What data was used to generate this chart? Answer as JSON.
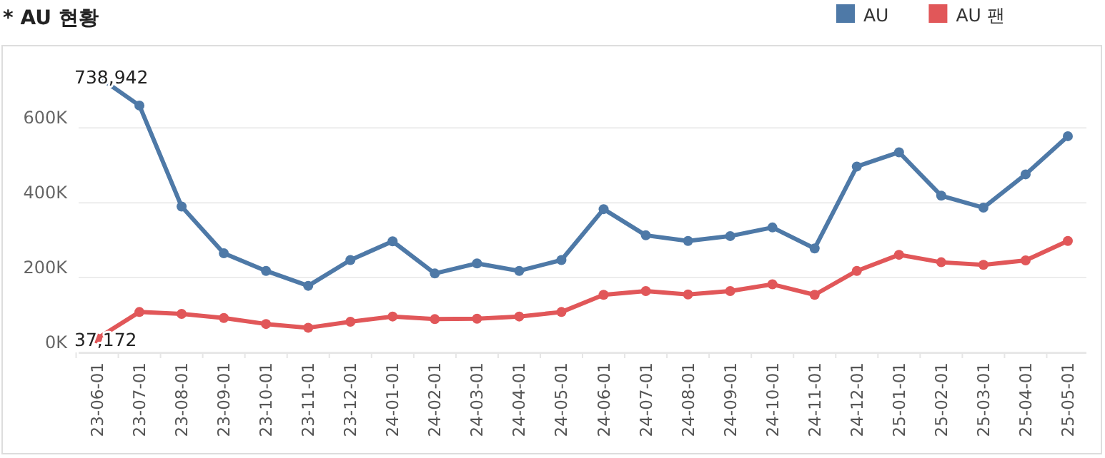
{
  "chart_data": {
    "type": "line",
    "title": "* AU 현황",
    "categories": [
      "23-06-01",
      "23-07-01",
      "23-08-01",
      "23-09-01",
      "23-10-01",
      "23-11-01",
      "23-12-01",
      "24-01-01",
      "24-02-01",
      "24-03-01",
      "24-04-01",
      "24-05-01",
      "24-06-01",
      "24-07-01",
      "24-08-01",
      "24-09-01",
      "24-10-01",
      "24-11-01",
      "24-12-01",
      "25-01-01",
      "25-02-01",
      "25-03-01",
      "25-04-01",
      "25-05-01"
    ],
    "series": [
      {
        "name": "AU",
        "color": "#4e79a7",
        "values": [
          738942,
          660000,
          390000,
          265000,
          218000,
          178000,
          247000,
          297000,
          211000,
          238000,
          218000,
          247000,
          383000,
          313000,
          298000,
          311000,
          334000,
          278000,
          497000,
          535000,
          419000,
          387000,
          476000,
          578000
        ]
      },
      {
        "name": "AU 팬",
        "color": "#e15759",
        "values": [
          37172,
          108000,
          103000,
          92000,
          76000,
          66000,
          82000,
          96000,
          89000,
          90000,
          96000,
          108000,
          154000,
          164000,
          155000,
          164000,
          182000,
          154000,
          218000,
          261000,
          241000,
          234000,
          246000,
          298000
        ]
      }
    ],
    "ylim": [
      0,
      820000
    ],
    "yticks": [
      {
        "value": 0,
        "label": "0K"
      },
      {
        "value": 200000,
        "label": "200K"
      },
      {
        "value": 400000,
        "label": "400K"
      },
      {
        "value": 600000,
        "label": "600K"
      }
    ],
    "grid": "y",
    "legend": "top right",
    "marker": "circle",
    "line_style": "solid",
    "annotations": [
      {
        "text": "738,942",
        "x": "23-06-01",
        "y": 738942
      },
      {
        "text": "37,172",
        "x": "23-06-01",
        "y": 37172
      }
    ]
  }
}
